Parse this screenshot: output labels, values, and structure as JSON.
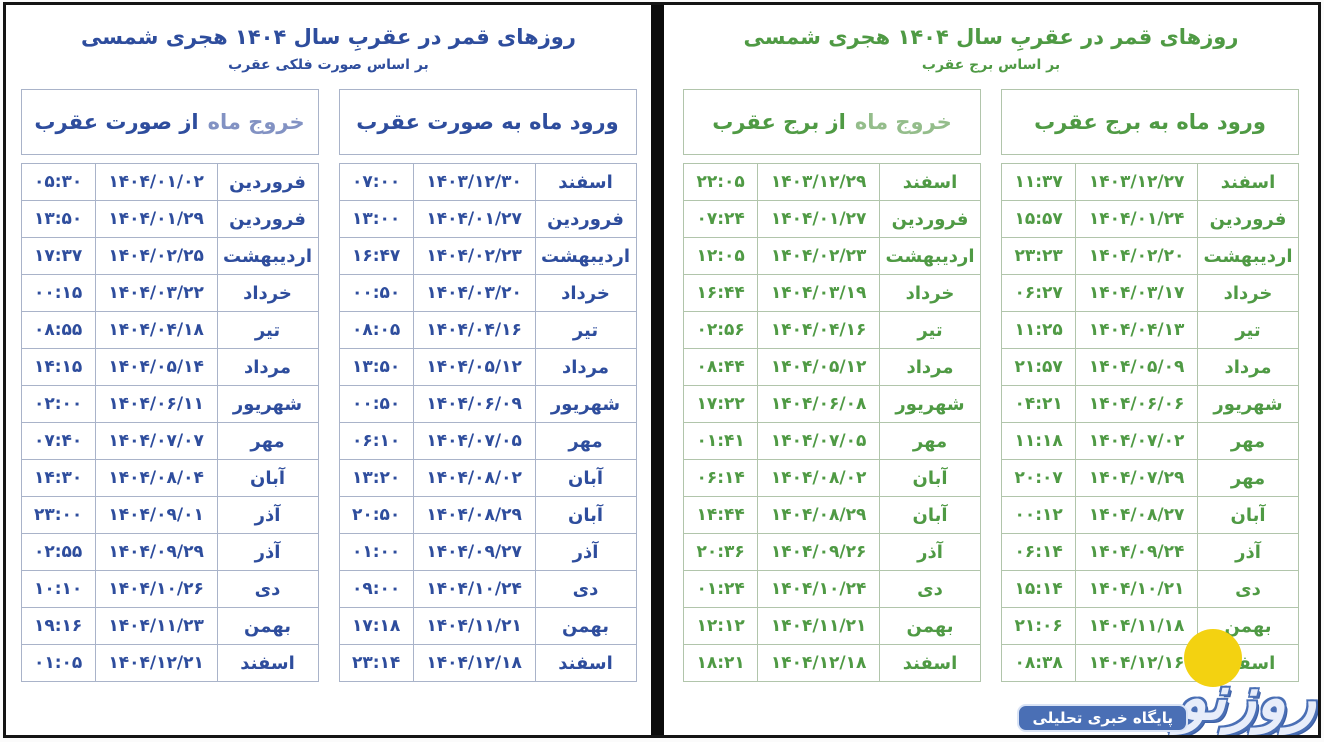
{
  "colors": {
    "frame_border": "#141414",
    "divider": "#0c0c0c",
    "background": "#ffffff",
    "blue_dark": "#2e4d9d",
    "blue_light": "#8292c3",
    "blue_cell_border": "#a9b3c9",
    "green_dark": "#4f9a44",
    "green_light": "#94bd8b",
    "green_cell_border": "#b1c5ab",
    "watermark_blue": "#4a6fb5",
    "watermark_yellow": "#f3d211"
  },
  "panels": [
    {
      "name": "constellation",
      "title": "روزهای قمر در عقربِ سال ۱۴۰۴ هجری شمسی",
      "subtitle": "بر اساس صورت فلکی عقرب",
      "entry": {
        "header": "ورود ماه به صورت عقرب",
        "rows": [
          {
            "month": "اسفند",
            "date": "۱۴۰۳/۱۲/۳۰",
            "time": "۰۷:۰۰"
          },
          {
            "month": "فروردین",
            "date": "۱۴۰۴/۰۱/۲۷",
            "time": "۱۳:۰۰"
          },
          {
            "month": "اردیبهشت",
            "date": "۱۴۰۴/۰۲/۲۳",
            "time": "۱۶:۴۷"
          },
          {
            "month": "خرداد",
            "date": "۱۴۰۴/۰۳/۲۰",
            "time": "۰۰:۵۰"
          },
          {
            "month": "تیر",
            "date": "۱۴۰۴/۰۴/۱۶",
            "time": "۰۸:۰۵"
          },
          {
            "month": "مرداد",
            "date": "۱۴۰۴/۰۵/۱۲",
            "time": "۱۳:۵۰"
          },
          {
            "month": "شهریور",
            "date": "۱۴۰۴/۰۶/۰۹",
            "time": "۰۰:۵۰"
          },
          {
            "month": "مهر",
            "date": "۱۴۰۴/۰۷/۰۵",
            "time": "۰۶:۱۰"
          },
          {
            "month": "آبان",
            "date": "۱۴۰۴/۰۸/۰۲",
            "time": "۱۳:۲۰"
          },
          {
            "month": "آبان",
            "date": "۱۴۰۴/۰۸/۲۹",
            "time": "۲۰:۵۰"
          },
          {
            "month": "آذر",
            "date": "۱۴۰۴/۰۹/۲۷",
            "time": "۰۱:۰۰"
          },
          {
            "month": "دی",
            "date": "۱۴۰۴/۱۰/۲۴",
            "time": "۰۹:۰۰"
          },
          {
            "month": "بهمن",
            "date": "۱۴۰۴/۱۱/۲۱",
            "time": "۱۷:۱۸"
          },
          {
            "month": "اسفند",
            "date": "۱۴۰۴/۱۲/۱۸",
            "time": "۲۳:۱۴"
          }
        ]
      },
      "exit": {
        "header_light": "خروج ماه",
        "header_rest": "از صورت عقرب",
        "rows": [
          {
            "month": "فروردین",
            "date": "۱۴۰۴/۰۱/۰۲",
            "time": "۰۵:۳۰"
          },
          {
            "month": "فروردین",
            "date": "۱۴۰۴/۰۱/۲۹",
            "time": "۱۳:۵۰"
          },
          {
            "month": "اردیبهشت",
            "date": "۱۴۰۴/۰۲/۲۵",
            "time": "۱۷:۳۷"
          },
          {
            "month": "خرداد",
            "date": "۱۴۰۴/۰۳/۲۲",
            "time": "۰۰:۱۵"
          },
          {
            "month": "تیر",
            "date": "۱۴۰۴/۰۴/۱۸",
            "time": "۰۸:۵۵"
          },
          {
            "month": "مرداد",
            "date": "۱۴۰۴/۰۵/۱۴",
            "time": "۱۴:۱۵"
          },
          {
            "month": "شهریور",
            "date": "۱۴۰۴/۰۶/۱۱",
            "time": "۰۲:۰۰"
          },
          {
            "month": "مهر",
            "date": "۱۴۰۴/۰۷/۰۷",
            "time": "۰۷:۴۰"
          },
          {
            "month": "آبان",
            "date": "۱۴۰۴/۰۸/۰۴",
            "time": "۱۴:۳۰"
          },
          {
            "month": "آذر",
            "date": "۱۴۰۴/۰۹/۰۱",
            "time": "۲۳:۰۰"
          },
          {
            "month": "آذر",
            "date": "۱۴۰۴/۰۹/۲۹",
            "time": "۰۲:۵۵"
          },
          {
            "month": "دی",
            "date": "۱۴۰۴/۱۰/۲۶",
            "time": "۱۰:۱۰"
          },
          {
            "month": "بهمن",
            "date": "۱۴۰۴/۱۱/۲۳",
            "time": "۱۹:۱۶"
          },
          {
            "month": "اسفند",
            "date": "۱۴۰۴/۱۲/۲۱",
            "time": "۰۱:۰۵"
          }
        ]
      }
    },
    {
      "name": "zodiac",
      "title": "روزهای قمر در عقربِ سال ۱۴۰۴ هجری شمسی",
      "subtitle": "بر اساس برج عقرب",
      "entry": {
        "header": "ورود ماه به برج عقرب",
        "rows": [
          {
            "month": "اسفند",
            "date": "۱۴۰۳/۱۲/۲۷",
            "time": "۱۱:۳۷"
          },
          {
            "month": "فروردین",
            "date": "۱۴۰۴/۰۱/۲۴",
            "time": "۱۵:۵۷"
          },
          {
            "month": "اردیبهشت",
            "date": "۱۴۰۴/۰۲/۲۰",
            "time": "۲۳:۲۳"
          },
          {
            "month": "خرداد",
            "date": "۱۴۰۴/۰۳/۱۷",
            "time": "۰۶:۲۷"
          },
          {
            "month": "تیر",
            "date": "۱۴۰۴/۰۴/۱۳",
            "time": "۱۱:۲۵"
          },
          {
            "month": "مرداد",
            "date": "۱۴۰۴/۰۵/۰۹",
            "time": "۲۱:۵۷"
          },
          {
            "month": "شهریور",
            "date": "۱۴۰۴/۰۶/۰۶",
            "time": "۰۴:۲۱"
          },
          {
            "month": "مهر",
            "date": "۱۴۰۴/۰۷/۰۲",
            "time": "۱۱:۱۸"
          },
          {
            "month": "مهر",
            "date": "۱۴۰۴/۰۷/۲۹",
            "time": "۲۰:۰۷"
          },
          {
            "month": "آبان",
            "date": "۱۴۰۴/۰۸/۲۷",
            "time": "۰۰:۱۲"
          },
          {
            "month": "آذر",
            "date": "۱۴۰۴/۰۹/۲۴",
            "time": "۰۶:۱۴"
          },
          {
            "month": "دی",
            "date": "۱۴۰۴/۱۰/۲۱",
            "time": "۱۵:۱۴"
          },
          {
            "month": "بهمن",
            "date": "۱۴۰۴/۱۱/۱۸",
            "time": "۲۱:۰۶"
          },
          {
            "month": "اسفند",
            "date": "۱۴۰۴/۱۲/۱۶",
            "time": "۰۸:۳۸"
          }
        ]
      },
      "exit": {
        "header_light": "خروج ماه",
        "header_rest": "از برج عقرب",
        "rows": [
          {
            "month": "اسفند",
            "date": "۱۴۰۳/۱۲/۲۹",
            "time": "۲۲:۰۵"
          },
          {
            "month": "فروردین",
            "date": "۱۴۰۴/۰۱/۲۷",
            "time": "۰۷:۲۴"
          },
          {
            "month": "اردیبهشت",
            "date": "۱۴۰۴/۰۲/۲۳",
            "time": "۱۲:۰۵"
          },
          {
            "month": "خرداد",
            "date": "۱۴۰۴/۰۳/۱۹",
            "time": "۱۶:۴۴"
          },
          {
            "month": "تیر",
            "date": "۱۴۰۴/۰۴/۱۶",
            "time": "۰۲:۵۶"
          },
          {
            "month": "مرداد",
            "date": "۱۴۰۴/۰۵/۱۲",
            "time": "۰۸:۴۴"
          },
          {
            "month": "شهریور",
            "date": "۱۴۰۴/۰۶/۰۸",
            "time": "۱۷:۲۲"
          },
          {
            "month": "مهر",
            "date": "۱۴۰۴/۰۷/۰۵",
            "time": "۰۱:۴۱"
          },
          {
            "month": "آبان",
            "date": "۱۴۰۴/۰۸/۰۲",
            "time": "۰۶:۱۴"
          },
          {
            "month": "آبان",
            "date": "۱۴۰۴/۰۸/۲۹",
            "time": "۱۴:۴۴"
          },
          {
            "month": "آذر",
            "date": "۱۴۰۴/۰۹/۲۶",
            "time": "۲۰:۳۶"
          },
          {
            "month": "دی",
            "date": "۱۴۰۴/۱۰/۲۴",
            "time": "۰۱:۲۴"
          },
          {
            "month": "بهمن",
            "date": "۱۴۰۴/۱۱/۲۱",
            "time": "۱۲:۱۲"
          },
          {
            "month": "اسفند",
            "date": "۱۴۰۴/۱۲/۱۸",
            "time": "۱۸:۲۱"
          }
        ]
      }
    }
  ],
  "watermark": {
    "logo_text": "روزنو",
    "tagline": "پایگاه خبری تحلیلی"
  }
}
